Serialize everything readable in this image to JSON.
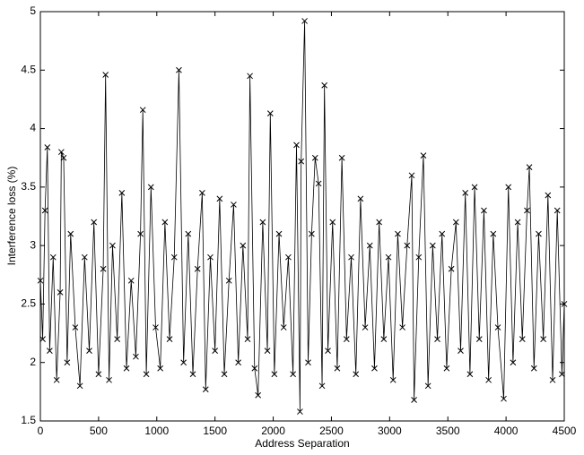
{
  "chart_data": {
    "type": "line",
    "xlabel": "Address Separation",
    "ylabel": "Interference loss (%)",
    "xlim": [
      0,
      4500
    ],
    "ylim": [
      1.5,
      5
    ],
    "xticks": [
      0,
      500,
      1000,
      1500,
      2000,
      2500,
      3000,
      3500,
      4000,
      4500
    ],
    "yticks": [
      1.5,
      2,
      2.5,
      3,
      3.5,
      4,
      4.5,
      5
    ],
    "color": "#000000",
    "marker": "x",
    "x": [
      0,
      20,
      40,
      60,
      80,
      110,
      140,
      170,
      180,
      200,
      230,
      260,
      300,
      340,
      380,
      420,
      460,
      500,
      540,
      560,
      590,
      620,
      660,
      700,
      740,
      780,
      820,
      860,
      880,
      910,
      950,
      990,
      1030,
      1070,
      1110,
      1150,
      1190,
      1230,
      1270,
      1310,
      1350,
      1390,
      1420,
      1460,
      1500,
      1540,
      1580,
      1620,
      1660,
      1700,
      1740,
      1780,
      1800,
      1840,
      1870,
      1910,
      1950,
      1975,
      2010,
      2050,
      2090,
      2130,
      2170,
      2200,
      2230,
      2240,
      2270,
      2300,
      2330,
      2360,
      2390,
      2420,
      2440,
      2470,
      2510,
      2550,
      2590,
      2630,
      2670,
      2710,
      2750,
      2790,
      2830,
      2870,
      2910,
      2950,
      2990,
      3030,
      3070,
      3110,
      3150,
      3190,
      3210,
      3250,
      3290,
      3330,
      3370,
      3410,
      3450,
      3490,
      3530,
      3570,
      3610,
      3650,
      3690,
      3730,
      3770,
      3810,
      3850,
      3890,
      3930,
      3980,
      4020,
      4060,
      4100,
      4140,
      4180,
      4200,
      4240,
      4280,
      4320,
      4360,
      4400,
      4440,
      4480,
      4500
    ],
    "values": [
      2.7,
      2.2,
      3.3,
      3.84,
      2.1,
      2.9,
      1.85,
      2.6,
      3.8,
      3.75,
      2.0,
      3.1,
      2.3,
      1.8,
      2.9,
      2.1,
      3.2,
      1.9,
      2.8,
      4.46,
      1.85,
      3.0,
      2.2,
      3.45,
      1.95,
      2.7,
      2.05,
      3.1,
      4.16,
      1.9,
      3.5,
      2.3,
      1.95,
      3.2,
      2.2,
      2.9,
      4.5,
      2.0,
      3.1,
      1.9,
      2.8,
      3.45,
      1.77,
      2.9,
      2.1,
      3.4,
      1.9,
      2.7,
      3.35,
      2.0,
      3.0,
      2.2,
      4.45,
      1.95,
      1.72,
      3.2,
      2.1,
      4.13,
      1.9,
      3.1,
      2.3,
      2.9,
      1.9,
      3.86,
      1.58,
      3.72,
      4.92,
      2.0,
      3.1,
      3.75,
      3.53,
      1.8,
      4.37,
      2.1,
      3.2,
      1.95,
      3.75,
      2.2,
      2.9,
      1.9,
      3.4,
      2.3,
      3.0,
      1.95,
      3.2,
      2.2,
      2.9,
      1.85,
      3.1,
      2.3,
      3.0,
      3.6,
      1.68,
      2.9,
      3.77,
      1.8,
      3.0,
      2.2,
      3.1,
      1.95,
      2.8,
      3.2,
      2.1,
      3.45,
      1.9,
      3.5,
      2.2,
      3.3,
      1.85,
      3.1,
      2.3,
      1.69,
      3.5,
      2.0,
      3.2,
      2.2,
      3.3,
      3.67,
      1.95,
      3.1,
      2.2,
      3.43,
      1.85,
      3.3,
      1.9,
      2.5
    ]
  }
}
